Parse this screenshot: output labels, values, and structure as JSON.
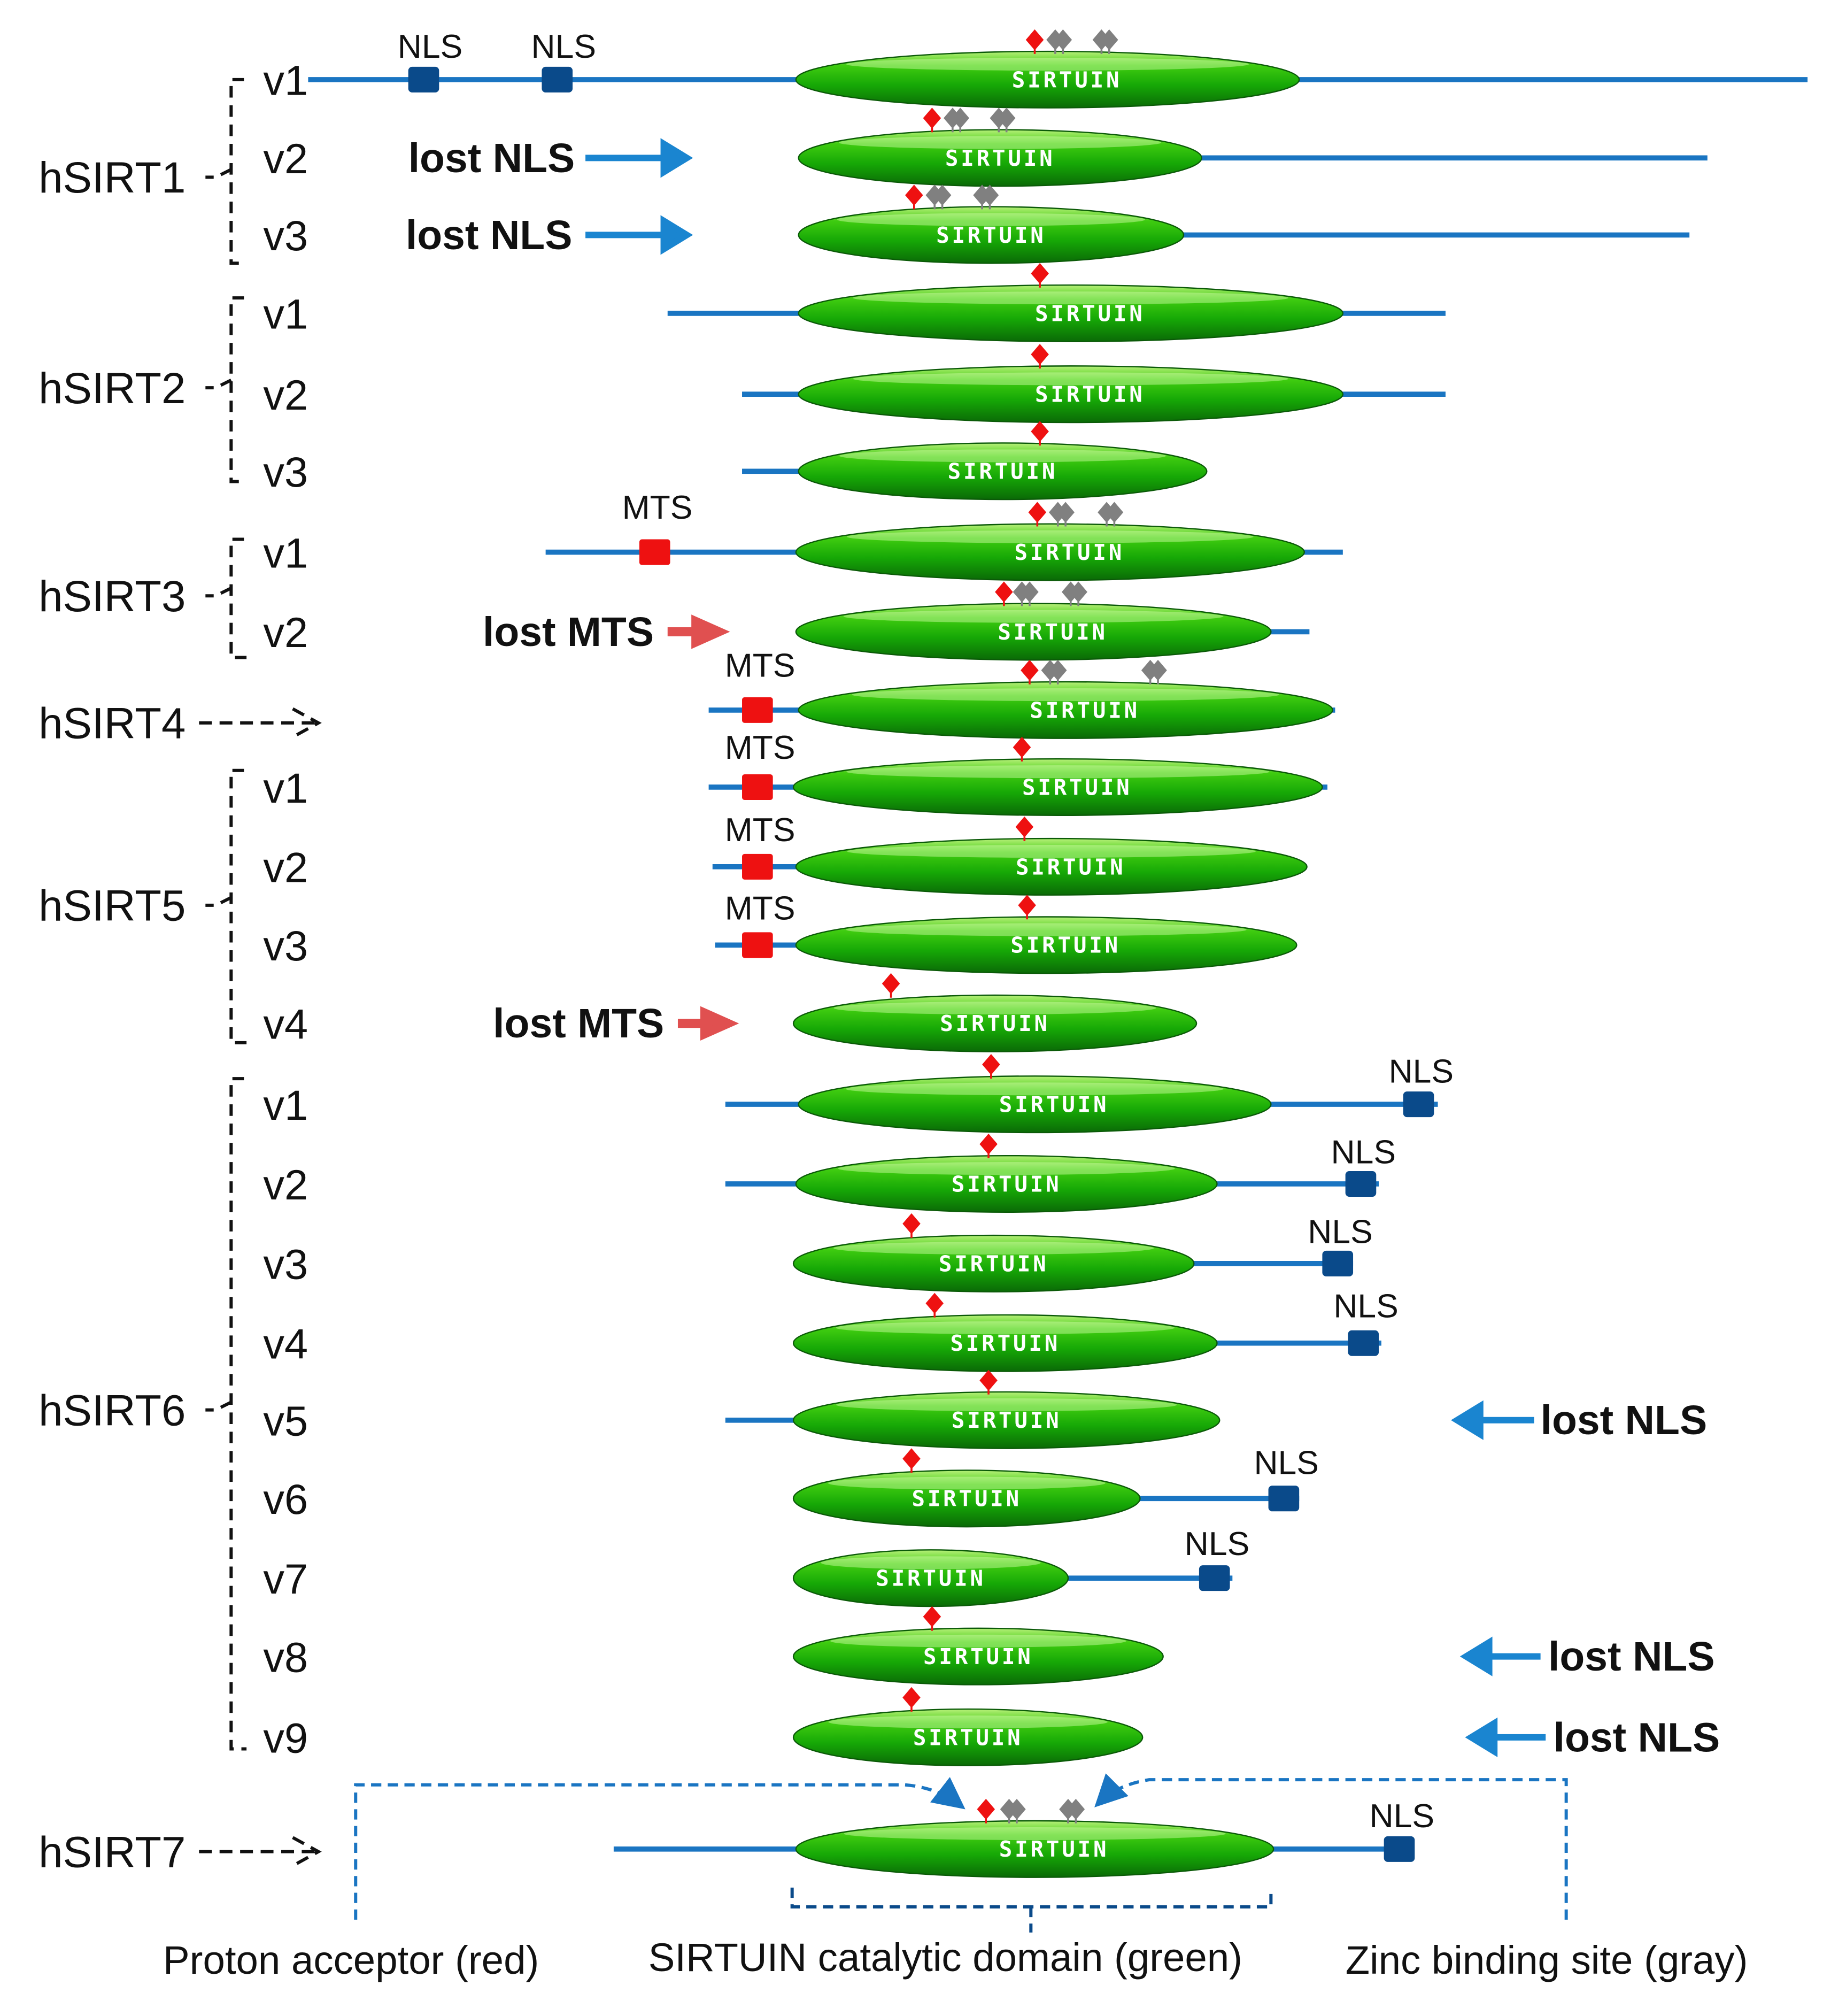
{
  "domain_label": "SIRTUIN",
  "groups": [
    {
      "name": "hSIRT1",
      "isoforms": [
        {
          "label": "v1",
          "motifs": [
            "NLS",
            "NLS"
          ]
        },
        {
          "label": "v2",
          "annotation": "lost NLS"
        },
        {
          "label": "v3",
          "annotation": "lost NLS"
        }
      ]
    },
    {
      "name": "hSIRT2",
      "isoforms": [
        {
          "label": "v1"
        },
        {
          "label": "v2"
        },
        {
          "label": "v3"
        }
      ]
    },
    {
      "name": "hSIRT3",
      "isoforms": [
        {
          "label": "v1",
          "motifs": [
            "MTS"
          ]
        },
        {
          "label": "v2",
          "annotation": "lost MTS"
        }
      ]
    },
    {
      "name": "hSIRT4",
      "isoforms": [
        {
          "label": "",
          "motifs": [
            "MTS"
          ]
        }
      ]
    },
    {
      "name": "hSIRT5",
      "isoforms": [
        {
          "label": "v1",
          "motifs": [
            "MTS"
          ]
        },
        {
          "label": "v2",
          "motifs": [
            "MTS"
          ]
        },
        {
          "label": "v3",
          "motifs": [
            "MTS"
          ]
        },
        {
          "label": "v4",
          "annotation": "lost MTS"
        }
      ]
    },
    {
      "name": "hSIRT6",
      "isoforms": [
        {
          "label": "v1",
          "motifs": [
            "NLS"
          ]
        },
        {
          "label": "v2",
          "motifs": [
            "NLS"
          ]
        },
        {
          "label": "v3",
          "motifs": [
            "NLS"
          ]
        },
        {
          "label": "v4",
          "motifs": [
            "NLS"
          ]
        },
        {
          "label": "v5",
          "annotation": "lost NLS"
        },
        {
          "label": "v6",
          "motifs": [
            "NLS"
          ]
        },
        {
          "label": "v7",
          "motifs": [
            "NLS"
          ]
        },
        {
          "label": "v8",
          "annotation": "lost NLS"
        },
        {
          "label": "v9",
          "annotation": "lost NLS"
        }
      ]
    },
    {
      "name": "hSIRT7",
      "isoforms": [
        {
          "label": "",
          "motifs": [
            "NLS"
          ]
        }
      ]
    }
  ],
  "legend": {
    "proton": "Proton acceptor (red)",
    "domain": "SIRTUIN catalytic domain (green)",
    "zinc": "Zinc binding site (gray)"
  },
  "colors": {
    "line": "#1a75c2",
    "nls": "#0a4a8a",
    "mts": "#ee1111",
    "proton": "#ee1111",
    "zinc": "#808080",
    "lost_nls_arrow": "#1a85d0",
    "lost_mts_arrow": "#e05050",
    "domain": "#22a812"
  }
}
